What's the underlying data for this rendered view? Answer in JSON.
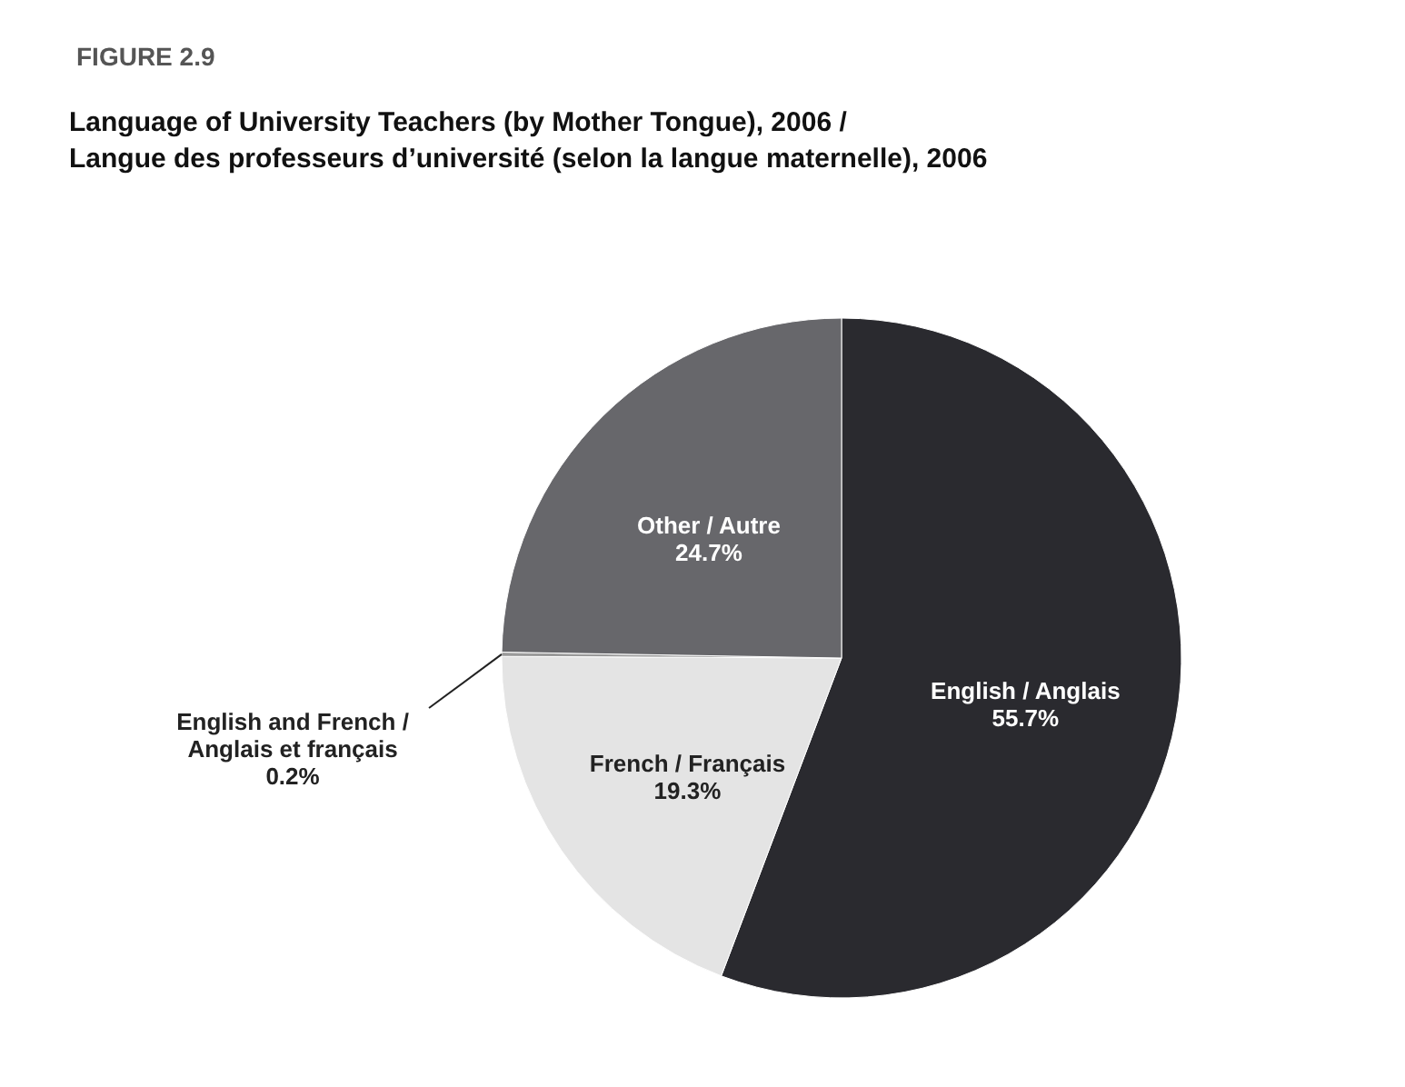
{
  "chart_data": {
    "type": "pie",
    "title": "Language of University Teachers (by Mother Tongue), 2006 /\nLangue des professeurs d’université (selon la langue maternelle), 2006",
    "annotations": [
      "FIGURE 2.9"
    ],
    "categories": [
      "English / Anglais",
      "French / Français",
      "English and French /\nAnglais et français",
      "Other / Autre"
    ],
    "values": [
      55.7,
      19.3,
      0.2,
      24.7
    ],
    "value_labels": [
      "55.7%",
      "19.3%",
      "0.2%",
      "24.7%"
    ],
    "colors": [
      "#2a2a2f",
      "#e4e4e4",
      "#9a9a9a",
      "#67676b"
    ]
  }
}
